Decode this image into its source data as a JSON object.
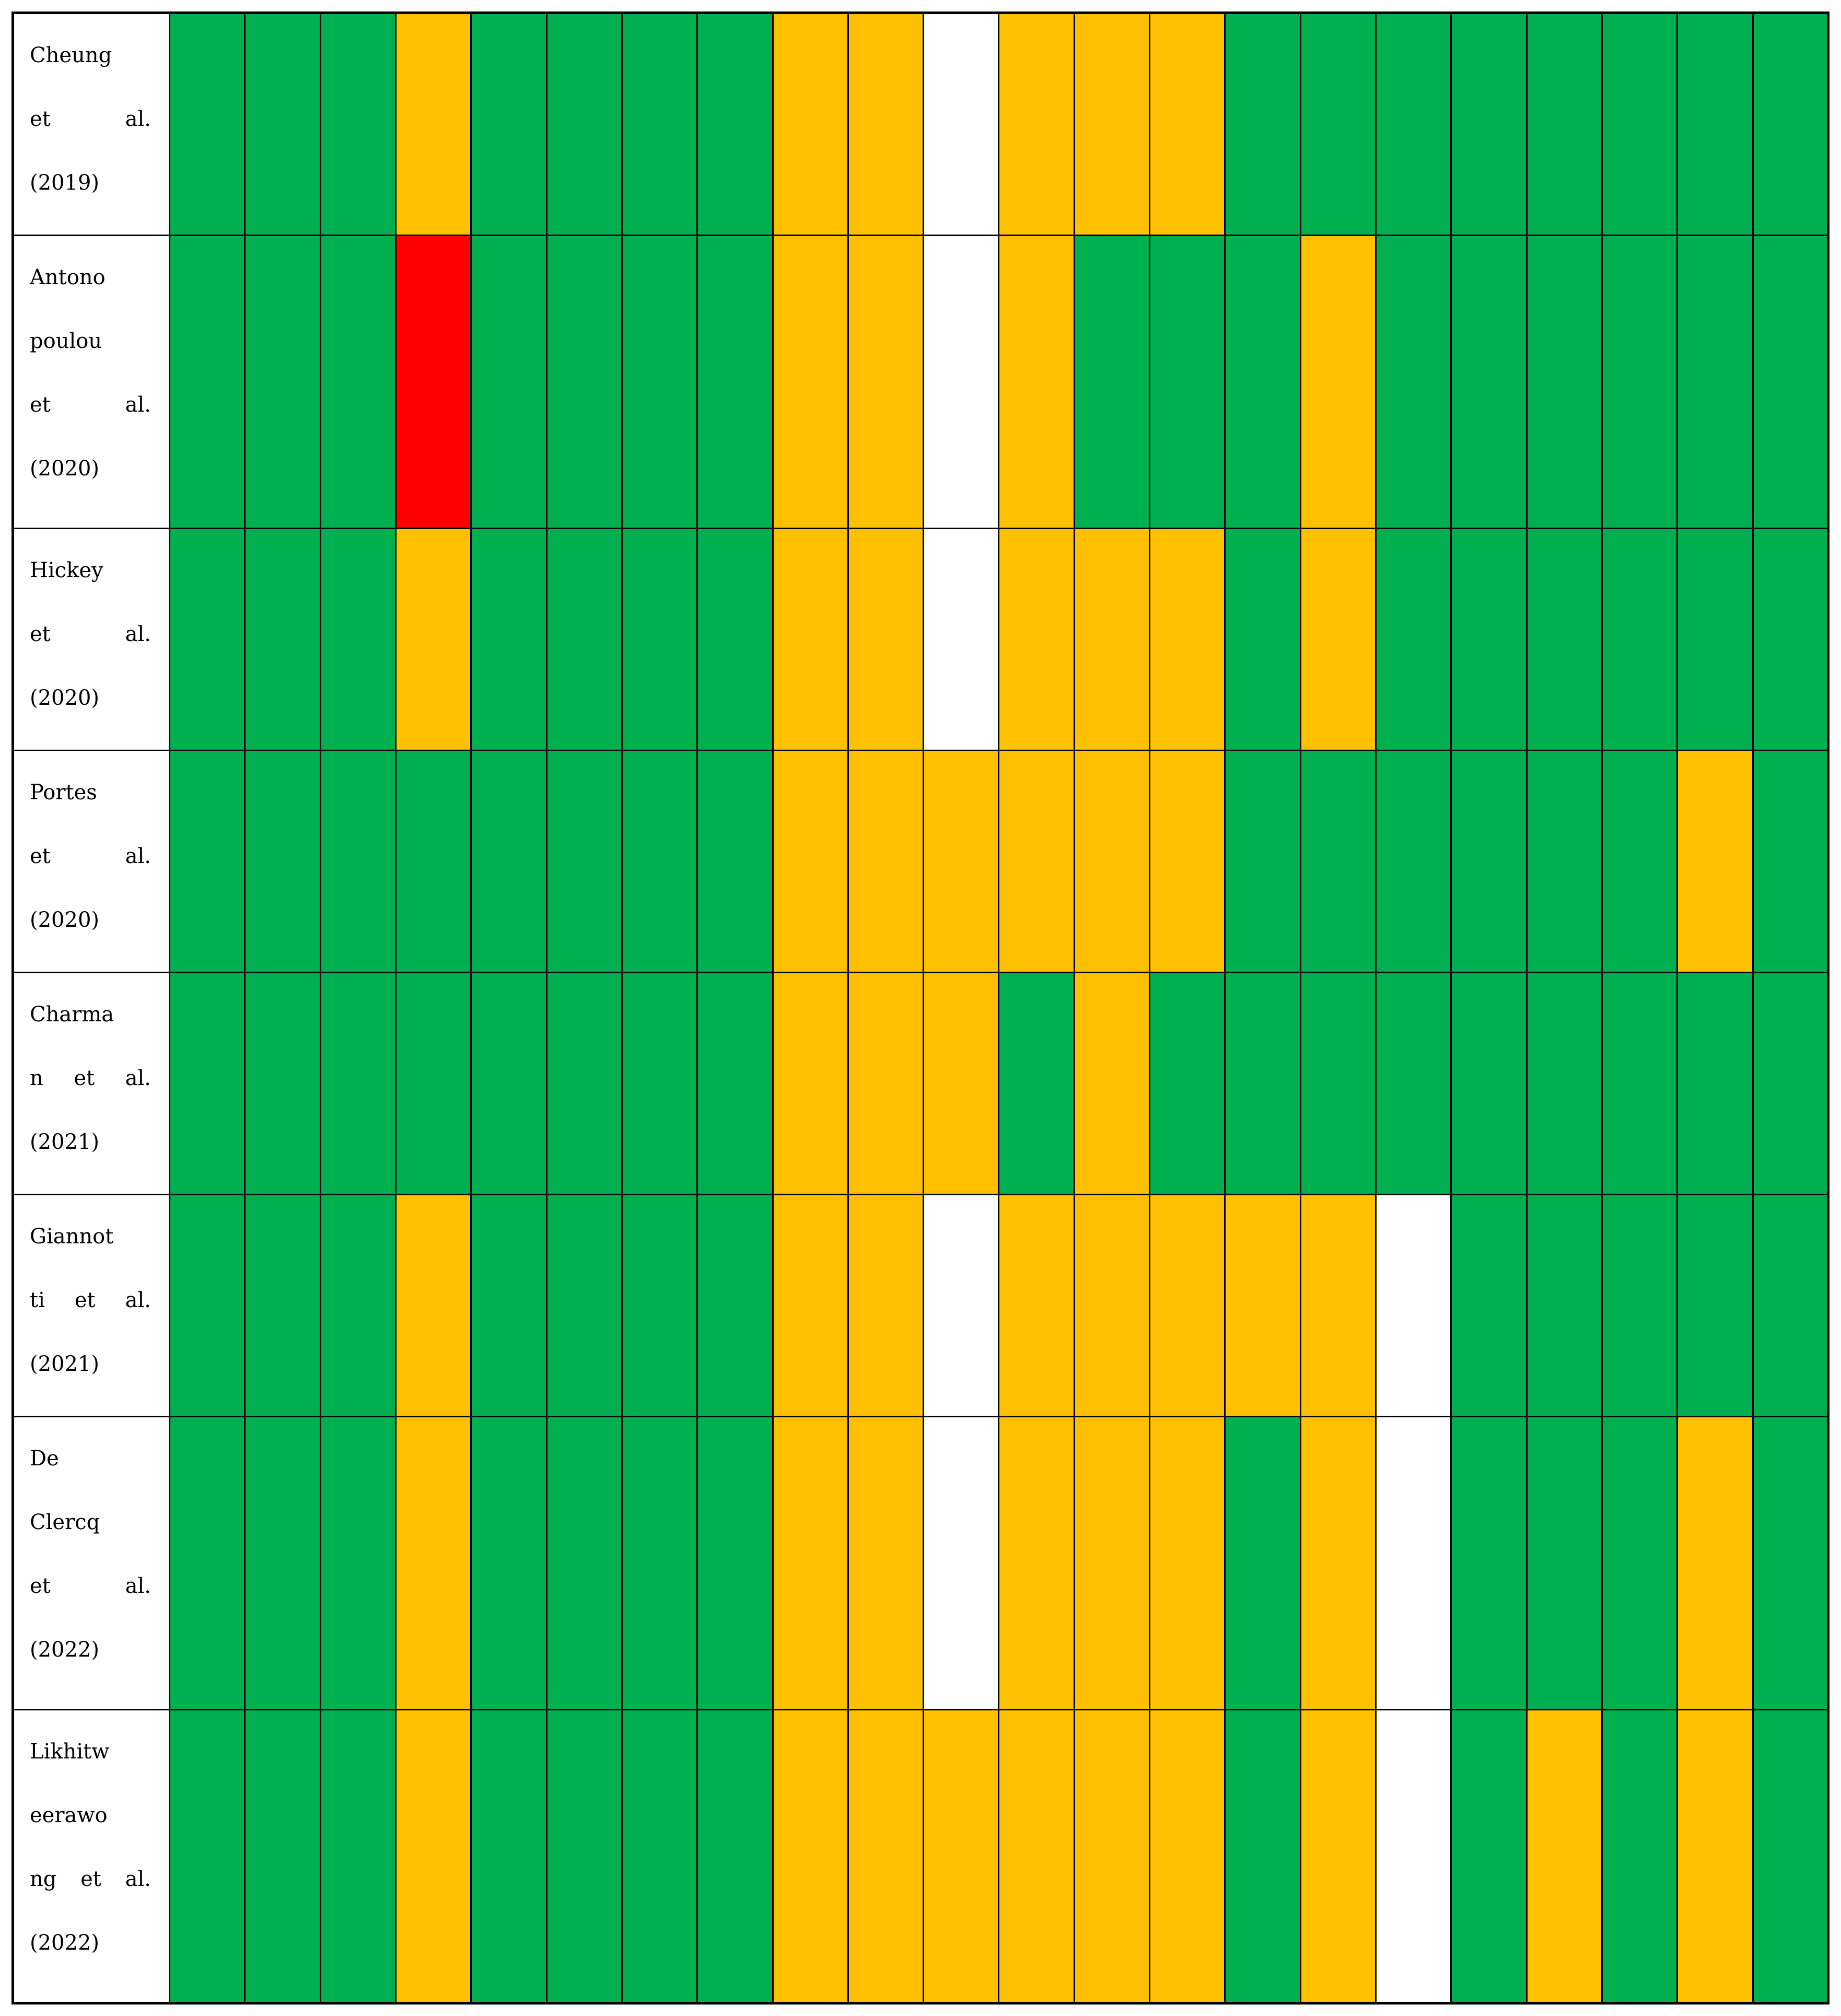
{
  "figure": {
    "description": "Traffic-light quality assessment table: one labelled study per row, 22 colored rating cells per row",
    "rows": [
      {
        "label": "Cheung\net al.\n(2019)"
      },
      {
        "label": "Antono\npoulou\net al.\n(2020)"
      },
      {
        "label": "Hickey\net al.\n(2020)"
      },
      {
        "label": "Portes\net al.\n(2020)"
      },
      {
        "label": "Charma\nn et al.\n(2021)"
      },
      {
        "label": "Giannot\nti et al.\n(2021)"
      },
      {
        "label": "De\nClercq\net al.\n(2022)"
      },
      {
        "label": "Likhitw\neerawo\nng et al.\n(2022)"
      }
    ]
  },
  "chart_data": {
    "type": "heatmap",
    "rows": [
      "Cheung et al. (2019)",
      "Antonopoulou et al. (2020)",
      "Hickey et al. (2020)",
      "Portes et al. (2020)",
      "Charman et al. (2021)",
      "Giannotti et al. (2021)",
      "De Clercq et al. (2022)",
      "Likhitweerawong et al. (2022)"
    ],
    "n_columns": 22,
    "legend": {
      "G": "#00B050",
      "Y": "#FFC000",
      "R": "#FF0000",
      "W": "#FFFFFF"
    },
    "legend_meaning": {
      "G": "green cell",
      "Y": "yellow cell",
      "R": "red cell",
      "W": "white (blank) cell"
    },
    "values": [
      [
        "G",
        "G",
        "G",
        "Y",
        "G",
        "G",
        "G",
        "G",
        "Y",
        "Y",
        "W",
        "Y",
        "Y",
        "Y",
        "G",
        "G",
        "G",
        "G",
        "G",
        "G",
        "G",
        "G"
      ],
      [
        "G",
        "G",
        "G",
        "R",
        "G",
        "G",
        "G",
        "G",
        "Y",
        "Y",
        "W",
        "Y",
        "G",
        "G",
        "G",
        "Y",
        "G",
        "G",
        "G",
        "G",
        "G",
        "G"
      ],
      [
        "G",
        "G",
        "G",
        "Y",
        "G",
        "G",
        "G",
        "G",
        "Y",
        "Y",
        "W",
        "Y",
        "Y",
        "Y",
        "G",
        "Y",
        "G",
        "G",
        "G",
        "G",
        "G",
        "G"
      ],
      [
        "G",
        "G",
        "G",
        "G",
        "G",
        "G",
        "G",
        "G",
        "Y",
        "Y",
        "Y",
        "Y",
        "Y",
        "Y",
        "G",
        "G",
        "G",
        "G",
        "G",
        "G",
        "Y",
        "G"
      ],
      [
        "G",
        "G",
        "G",
        "G",
        "G",
        "G",
        "G",
        "G",
        "Y",
        "Y",
        "Y",
        "G",
        "Y",
        "G",
        "G",
        "G",
        "G",
        "G",
        "G",
        "G",
        "G",
        "G"
      ],
      [
        "G",
        "G",
        "G",
        "Y",
        "G",
        "G",
        "G",
        "G",
        "Y",
        "Y",
        "W",
        "Y",
        "Y",
        "Y",
        "Y",
        "Y",
        "W",
        "G",
        "G",
        "G",
        "G",
        "G"
      ],
      [
        "G",
        "G",
        "G",
        "Y",
        "G",
        "G",
        "G",
        "G",
        "Y",
        "Y",
        "W",
        "Y",
        "Y",
        "Y",
        "G",
        "Y",
        "W",
        "G",
        "G",
        "G",
        "Y",
        "G"
      ],
      [
        "G",
        "G",
        "G",
        "Y",
        "G",
        "G",
        "G",
        "G",
        "Y",
        "Y",
        "Y",
        "Y",
        "Y",
        "Y",
        "G",
        "Y",
        "W",
        "G",
        "Y",
        "G",
        "Y",
        "G"
      ]
    ]
  }
}
